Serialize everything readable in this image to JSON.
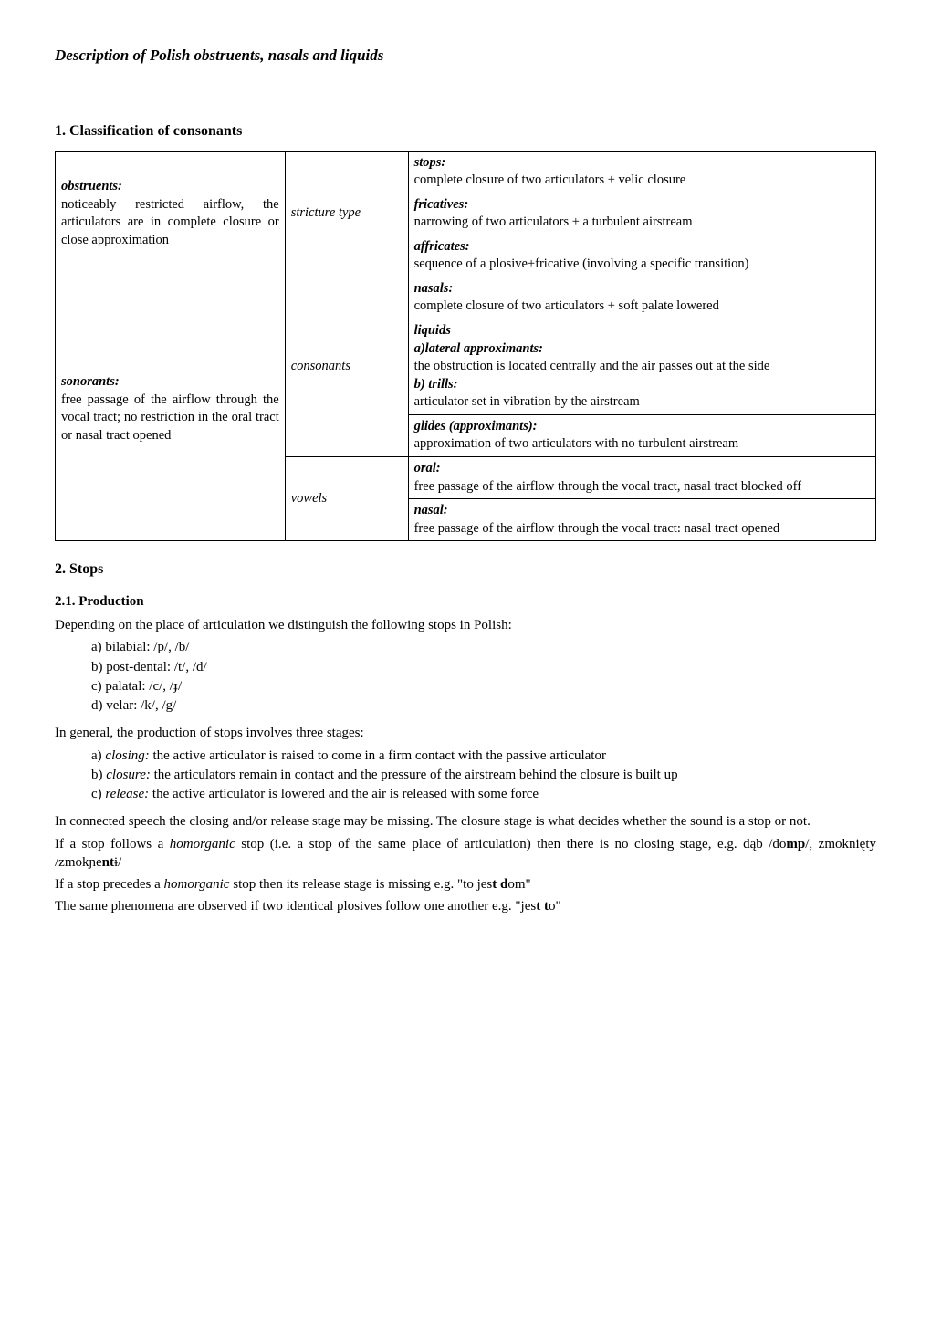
{
  "title": "Description of Polish obstruents, nasals and liquids",
  "section1": {
    "heading": "1.  Classification of consonants",
    "col1a_head": "obstruents:",
    "col1a_body": "noticeably restricted airflow, the articulators are in complete closure or close approximation",
    "col1b_head": "sonorants:",
    "col1b_body": "free passage of the airflow through the vocal tract; no restriction in the oral tract or nasal tract opened",
    "col2a": "stricture type",
    "col2b": "consonants",
    "col2c": "vowels",
    "r1_head": "stops:",
    "r1_body": "complete closure of two articulators + velic closure",
    "r2_head": "fricatives:",
    "r2_body": "narrowing of two articulators + a turbulent airstream",
    "r3_head": "affricates:",
    "r3_body": "sequence of a plosive+fricative (involving a specific transition)",
    "r4_head": "nasals:",
    "r4_body": "complete closure of two articulators + soft palate lowered",
    "r5_head": "liquids",
    "r5a_head": "a)lateral approximants:",
    "r5a_body": "the obstruction is located centrally and the air passes out at the side",
    "r5b_head": "b) trills:",
    "r5b_body": "articulator set in vibration by the airstream",
    "r6_head": "glides (approximants):",
    "r6_body": "approximation of two articulators with no turbulent airstream",
    "r7_head": "oral:",
    "r7_body": "free passage of the airflow through the vocal tract, nasal tract blocked off",
    "r8_head": "nasal:",
    "r8_body": "free passage of the airflow through the vocal tract: nasal tract opened"
  },
  "section2": {
    "heading": "2.  Stops",
    "sub21": "2.1. Production",
    "p_intro": "Depending on the place of articulation we distinguish the following stops in Polish:",
    "list_places": {
      "a": "a)   bilabial: /p/, /b/",
      "b": "b)   post-dental: /t/, /d/",
      "c": "c)   palatal: /c/, /ɟ/",
      "d": "d)   velar: /k/, /g/"
    },
    "p_stages": "In general, the production of stops involves three stages:",
    "list_stages": {
      "a_pre": "a)   ",
      "a_it": "closing:",
      "a_post": " the active articulator is raised to come in a firm contact with the passive articulator",
      "b_pre": "b)   ",
      "b_it": "closure:",
      "b_post": " the articulators remain in contact and the pressure of the airstream behind the closure is built up",
      "c_pre": "c)   ",
      "c_it": "release:",
      "c_post": " the active articulator is lowered and the air is released with some force"
    },
    "p_conn": "In connected speech the closing and/or release stage may be missing. The closure stage is what decides whether the sound is a stop or not.",
    "p_hom1_pre": "If a stop follows a ",
    "p_hom_it": "homorganic",
    "p_hom1_post": " stop (i.e. a stop of the same place of articulation) then there is no closing stage, e.g. dąb /do",
    "p_hom1_b1": "mp",
    "p_hom1_mid": "/, zmoknięty /zmokɲe",
    "p_hom1_b2": "nt",
    "p_hom1_end": "ɨ/",
    "p_hom2_pre": "If a stop precedes a ",
    "p_hom2_post": " stop then its release stage is missing e.g. \"to jes",
    "p_hom2_b1": "t d",
    "p_hom2_end": "om\"",
    "p_same": "The same phenomena are observed if two identical plosives follow one another e.g. \"jes",
    "p_same_b": "t t",
    "p_same_end": "o\""
  }
}
